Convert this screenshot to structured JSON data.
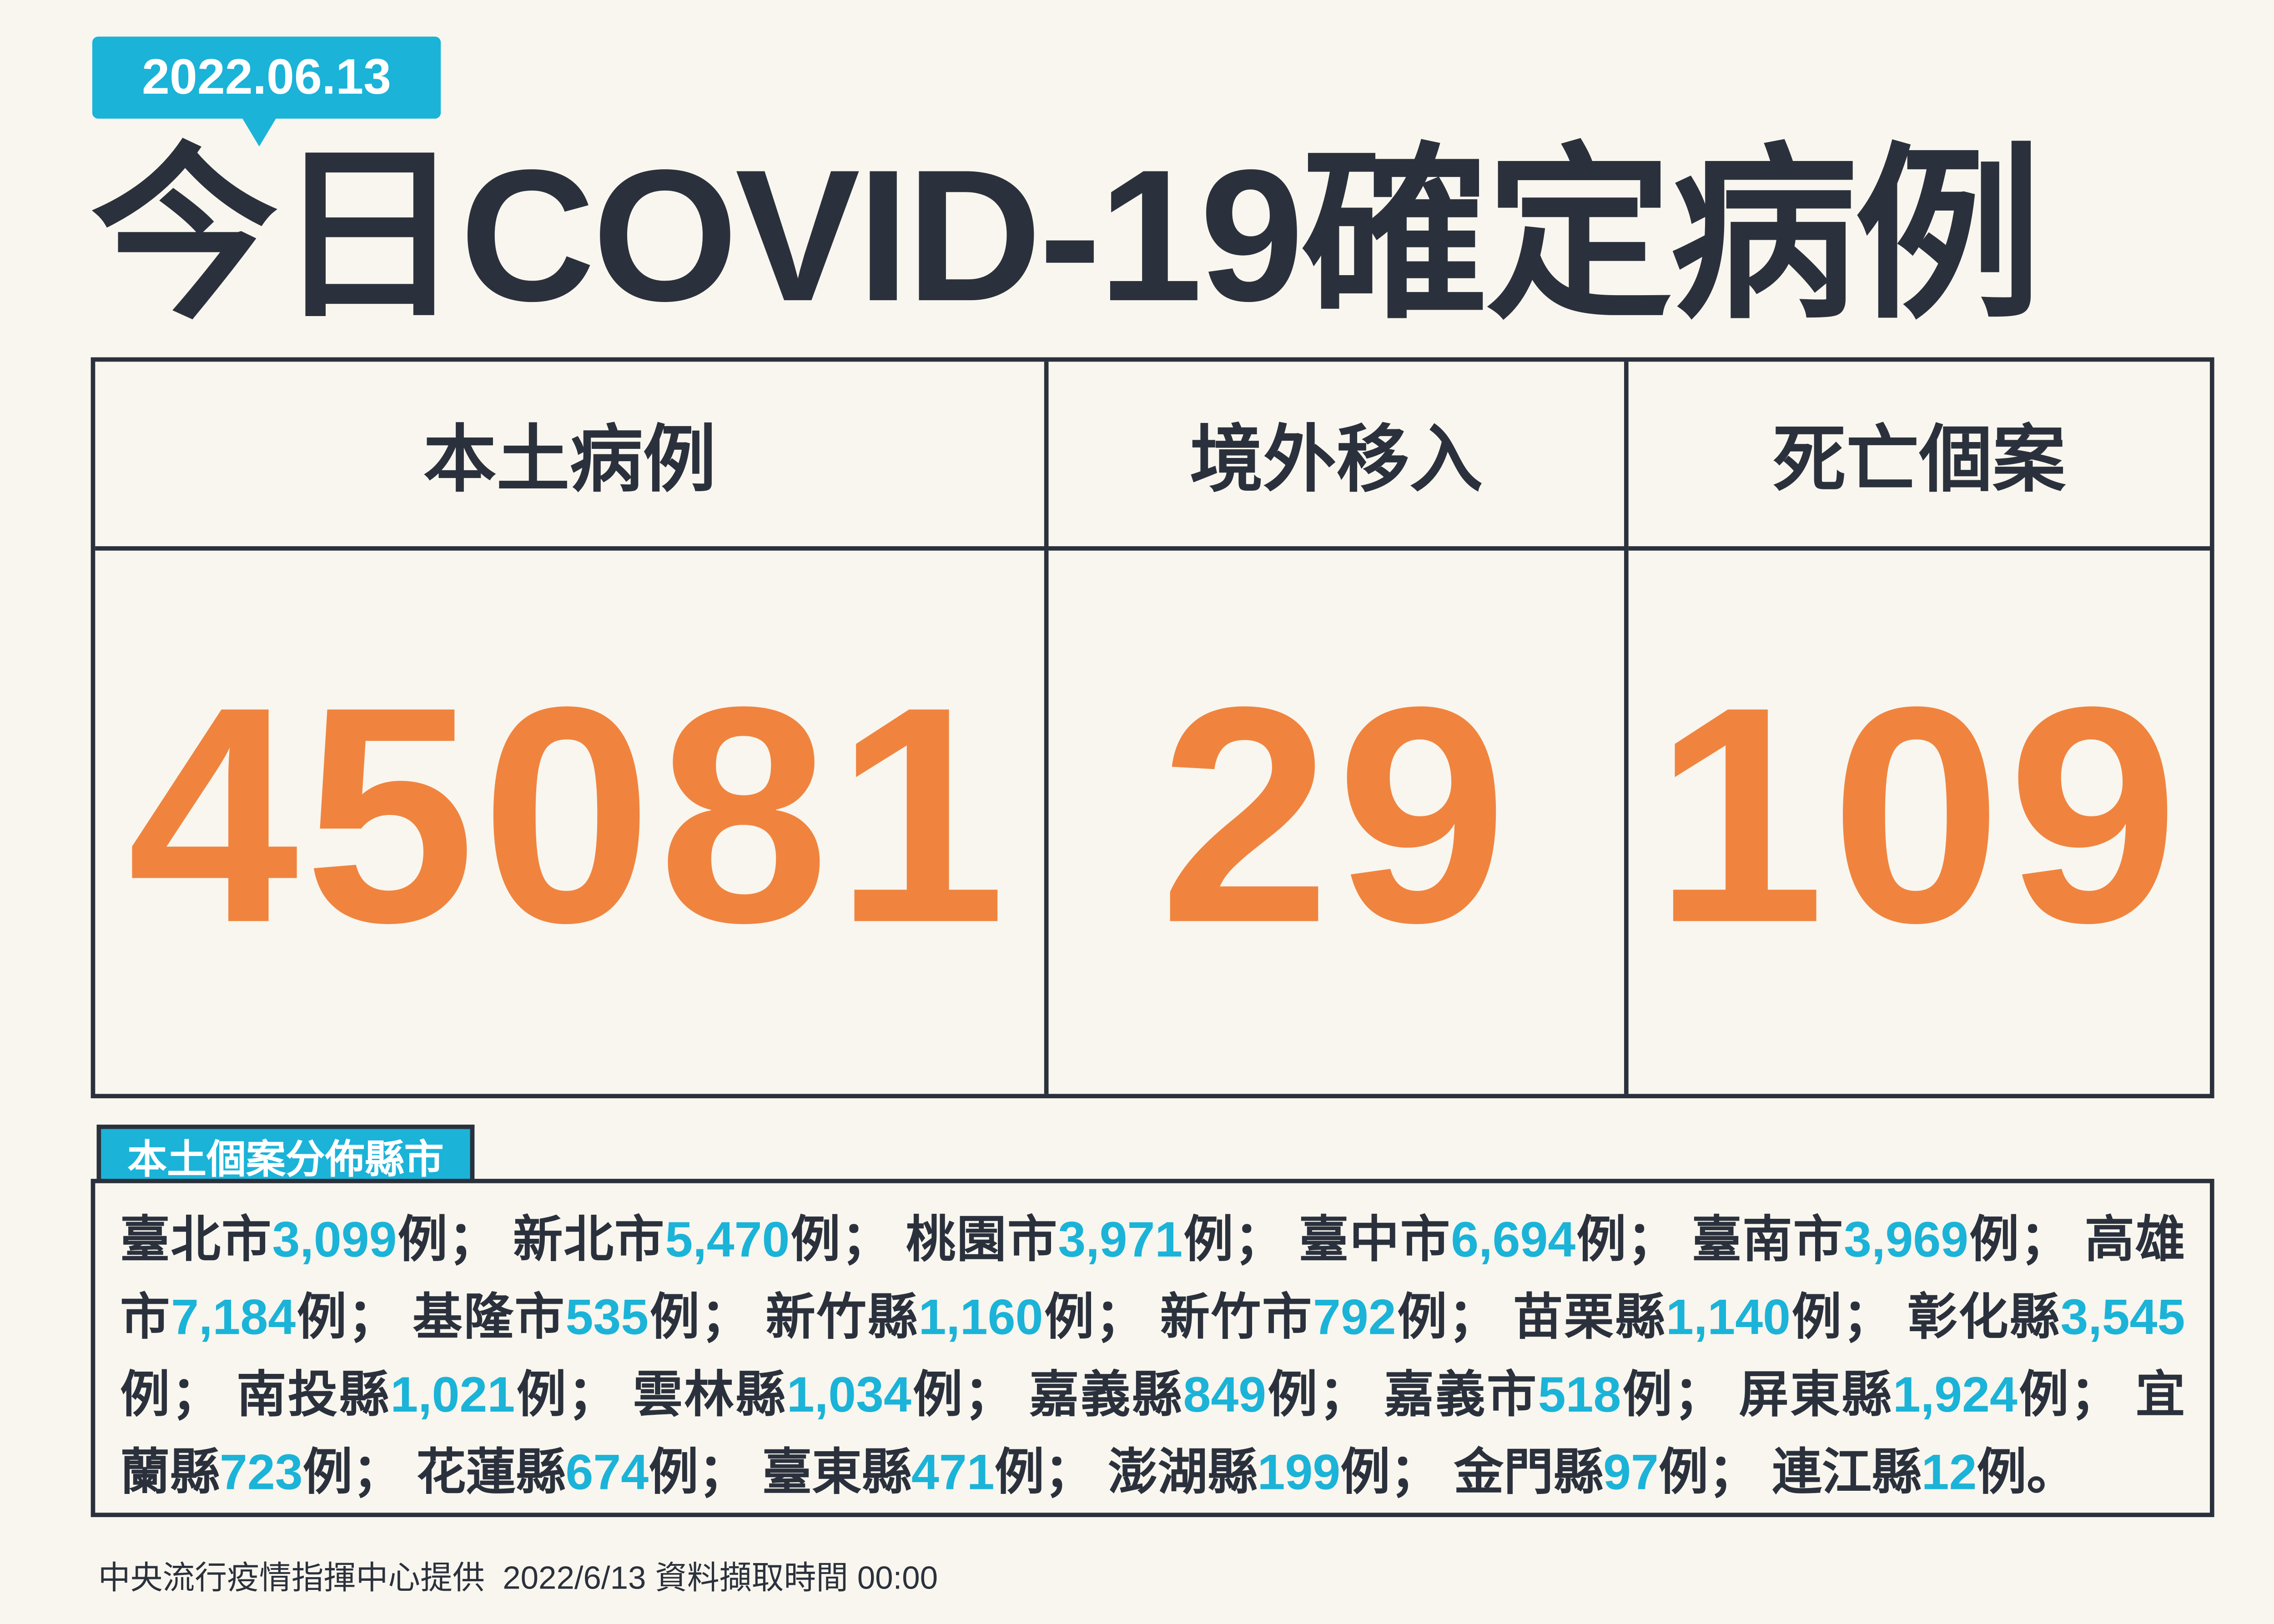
{
  "date": "2022.06.13",
  "title": "今日COVID-19確定病例",
  "columns": [
    {
      "label": "本土病例",
      "value": "45081"
    },
    {
      "label": "境外移入",
      "value": "29"
    },
    {
      "label": "死亡個案",
      "value": "109"
    }
  ],
  "distribution": {
    "label": "本土個案分佈縣市",
    "unit": "例",
    "separator": "；",
    "end": "。",
    "items": [
      {
        "name": "臺北市",
        "count": "3,099"
      },
      {
        "name": "新北市",
        "count": "5,470"
      },
      {
        "name": "桃園市",
        "count": "3,971"
      },
      {
        "name": "臺中市",
        "count": "6,694"
      },
      {
        "name": "臺南市",
        "count": "3,969"
      },
      {
        "name": "高雄市",
        "count": "7,184"
      },
      {
        "name": "基隆市",
        "count": "535"
      },
      {
        "name": "新竹縣",
        "count": "1,160"
      },
      {
        "name": "新竹市",
        "count": "792"
      },
      {
        "name": "苗栗縣",
        "count": "1,140"
      },
      {
        "name": "彰化縣",
        "count": "3,545"
      },
      {
        "name": "南投縣",
        "count": "1,021"
      },
      {
        "name": "雲林縣",
        "count": "1,034"
      },
      {
        "name": "嘉義縣",
        "count": "849"
      },
      {
        "name": "嘉義市",
        "count": "518"
      },
      {
        "name": "屏東縣",
        "count": "1,924"
      },
      {
        "name": "宜蘭縣",
        "count": "723"
      },
      {
        "name": "花蓮縣",
        "count": "674"
      },
      {
        "name": "臺東縣",
        "count": "471"
      },
      {
        "name": "澎湖縣",
        "count": "199"
      },
      {
        "name": "金門縣",
        "count": "97"
      },
      {
        "name": "連江縣",
        "count": "12"
      }
    ]
  },
  "footer": {
    "source": "中央流行疫情指揮中心提供",
    "timestamp": "2022/6/13 資料擷取時間 00:00"
  },
  "colors": {
    "accent": "#1bb3d8",
    "number": "#f0843f",
    "text": "#2b313c",
    "background": "#f8f6ee"
  }
}
